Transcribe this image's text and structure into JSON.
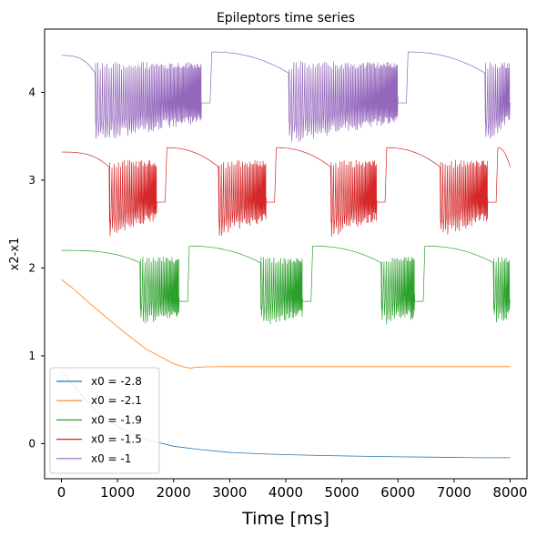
{
  "chart_data": {
    "type": "line",
    "title": "Epileptors time series",
    "xlabel": "Time [ms]",
    "ylabel": "x2-x1",
    "xlim": [
      -300,
      8300
    ],
    "ylim": [
      -0.4,
      4.72
    ],
    "xticks": [
      0,
      1000,
      2000,
      3000,
      4000,
      5000,
      6000,
      7000,
      8000
    ],
    "xtick_labels": [
      "0",
      "1000",
      "2000",
      "3000",
      "4000",
      "5000",
      "6000",
      "7000",
      "8000"
    ],
    "yticks": [
      0,
      1,
      2,
      3,
      4
    ],
    "ytick_labels": [
      "0",
      "1",
      "2",
      "3",
      "4"
    ],
    "grid": false,
    "legend_position": "lower-left",
    "series": [
      {
        "name": "x0  = -2.8",
        "color": "#1f77b4",
        "kind": "decay",
        "x": [
          0,
          200,
          400,
          600,
          800,
          1000,
          1200,
          1500,
          2000,
          2500,
          3000,
          3500,
          4000,
          4500,
          5000,
          5500,
          6000,
          6500,
          7000,
          7500,
          8000
        ],
        "y": [
          0.82,
          0.68,
          0.52,
          0.38,
          0.28,
          0.2,
          0.13,
          0.05,
          -0.03,
          -0.07,
          -0.1,
          -0.115,
          -0.125,
          -0.133,
          -0.14,
          -0.145,
          -0.15,
          -0.153,
          -0.157,
          -0.16,
          -0.16
        ]
      },
      {
        "name": "x0  = -2.1",
        "color": "#ff7f0e",
        "kind": "decay",
        "x": [
          0,
          200,
          500,
          1000,
          1500,
          2000,
          2200,
          2300,
          2400,
          2600,
          3000,
          4000,
          5000,
          6000,
          7000,
          8000
        ],
        "y": [
          1.87,
          1.77,
          1.6,
          1.33,
          1.08,
          0.91,
          0.87,
          0.86,
          0.87,
          0.875,
          0.877,
          0.877,
          0.877,
          0.877,
          0.877,
          0.877
        ]
      },
      {
        "name": "x0  = -1.9",
        "color": "#2ca02c",
        "kind": "epileptor",
        "start_phase": "interictal",
        "rest_level": 2.2,
        "rest_end_level": 2.06,
        "peak_level": 2.25,
        "seizure_top": 2.1,
        "seizure_bottom": 1.55,
        "seizure_min": 1.38,
        "seizure_end_level": 1.62,
        "seizures": [
          [
            1400,
            2100
          ],
          [
            3550,
            4300
          ],
          [
            5700,
            6300
          ],
          [
            7700,
            8000
          ]
        ]
      },
      {
        "name": "x0  = -1.5",
        "color": "#d62728",
        "kind": "epileptor",
        "start_phase": "interictal",
        "rest_level": 3.32,
        "rest_end_level": 3.15,
        "peak_level": 3.37,
        "seizure_top": 3.2,
        "seizure_bottom": 2.55,
        "seizure_min": 2.37,
        "seizure_end_level": 2.75,
        "seizures": [
          [
            850,
            1700
          ],
          [
            2800,
            3650
          ],
          [
            4800,
            5620
          ],
          [
            6750,
            7600
          ]
        ]
      },
      {
        "name": "x0  = -1",
        "color": "#9467bd",
        "kind": "epileptor",
        "start_phase": "interictal",
        "rest_level": 4.42,
        "rest_end_level": 4.22,
        "peak_level": 4.46,
        "seizure_top": 4.32,
        "seizure_bottom": 3.62,
        "seizure_min": 3.5,
        "seizure_end_level": 3.88,
        "seizures": [
          [
            600,
            2500
          ],
          [
            4050,
            6000
          ],
          [
            7550,
            8000
          ]
        ]
      }
    ]
  }
}
